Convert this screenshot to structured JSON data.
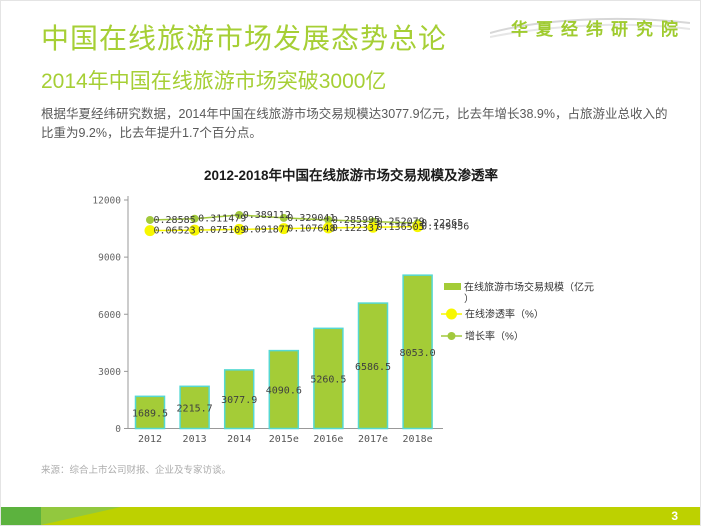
{
  "header": {
    "title": "中国在线旅游市场发展态势总论",
    "subtitle": "2014年中国在线旅游市场突破3000亿",
    "body": "根据华夏经纬研究数据，2014年中国在线旅游市场交易规模达3077.9亿元，比去年增长38.9%，占旅游业总收入的比重为9.2%，比去年提升1.7个百分点。",
    "logo": "华夏经纬研究院"
  },
  "footer": {
    "source": "来源：综合上市公司财报、企业及专家访谈。",
    "page_number": "3"
  },
  "colors": {
    "accent_green": "#A6CF35",
    "bar_fill": "#A4CC37",
    "bar_border": "#55D8D2",
    "line_yellow": "#F7F700",
    "line_green": "#A2C93C",
    "footer_main": "#BDD100",
    "footer_left_green": "#5CB23E",
    "footer_mid_green": "#92C83E"
  },
  "chart_data": {
    "type": "bar",
    "title": "2012-2018年中国在线旅游市场交易规模及渗透率",
    "categories": [
      "2012",
      "2013",
      "2014",
      "2015e",
      "2016e",
      "2017e",
      "2018e"
    ],
    "ylim": [
      0,
      12000
    ],
    "yticks": [
      0,
      3000,
      6000,
      9000,
      12000
    ],
    "grid": false,
    "legend_position": "right",
    "series": [
      {
        "name": "在线旅游市场交易规模（亿元）",
        "type": "bar",
        "color": "#A4CC37",
        "border": "#55D8D2",
        "values": [
          1689.5,
          2215.7,
          3077.9,
          4090.6,
          5260.5,
          6586.5,
          8053.0
        ],
        "labels": [
          "1689.5",
          "2215.7",
          "3077.9",
          "4090.6",
          "5260.5",
          "6586.5",
          "8053.0"
        ]
      },
      {
        "name": "在线渗透率（%）",
        "type": "line",
        "color": "#F7F700",
        "marker_r": 5.5,
        "values": [
          0.06523,
          0.075109,
          0.091877,
          0.107648,
          0.122337,
          0.136505,
          0.149456
        ],
        "labels": [
          "0.06523",
          "0.075109",
          "0.091877",
          "0.107648",
          "0.122337",
          "0.136505",
          "0.149456"
        ]
      },
      {
        "name": "增长率（%）",
        "type": "line",
        "color": "#A2C93C",
        "marker_r": 4,
        "values": [
          0.28585,
          0.311479,
          0.389112,
          0.329041,
          0.285995,
          0.252079,
          0.22265
        ],
        "labels": [
          "0.28585",
          "0.311479",
          "0.389112",
          "0.329041",
          "0.285995",
          "0.252079",
          "0.22265"
        ]
      }
    ]
  }
}
